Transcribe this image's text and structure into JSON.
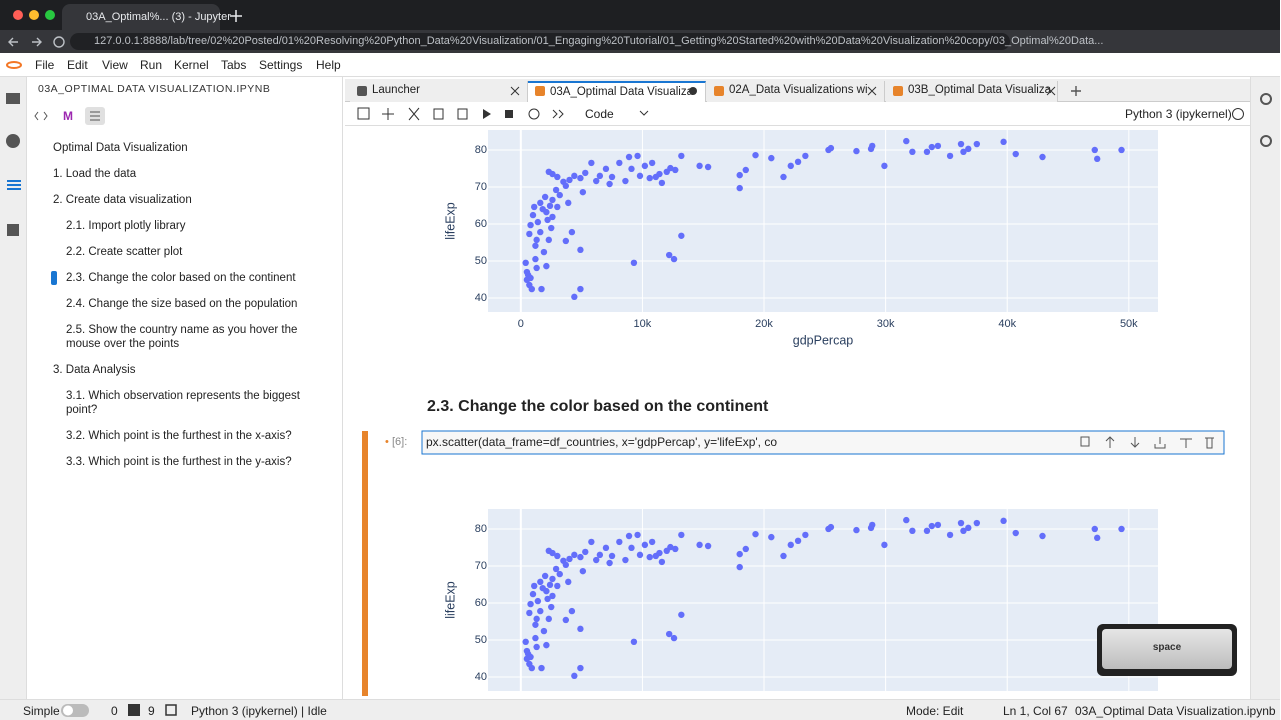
{
  "browser": {
    "tab_title": "03A_Optimal%... (3) - Jupyter",
    "url": "127.0.0.1:8888/lab/tree/02%20Posted/01%20Resolving%20Python_Data%20Visualization/01_Engaging%20Tutorial/01_Getting%20Started%20with%20Data%20Visualization%20copy/03_Optimal%20Data..."
  },
  "menu": [
    "File",
    "Edit",
    "View",
    "Run",
    "Kernel",
    "Tabs",
    "Settings",
    "Help"
  ],
  "sidebar": {
    "title": "03A_OPTIMAL DATA VISUALIZATION.IPYNB",
    "toc": [
      "Optimal Data Visualization",
      "1. Load the data",
      "2. Create data visualization",
      "2.1. Import plotly library",
      "2.2. Create scatter plot",
      "2.3. Change the color based on the continent",
      "2.4. Change the size based on the population",
      "2.5. Show the country name as you hover the mouse over the points",
      "3. Data Analysis",
      "3.1. Which observation represents the biggest point?",
      "3.2. Which point is the furthest in the x-axis?",
      "3.3. Which point is the furthest in the y-axis?"
    ]
  },
  "tabs": [
    "Launcher",
    "03A_Optimal Data Visualiza",
    "02A_Data Visualizations wi",
    "03B_Optimal Data Visualiza"
  ],
  "toolbar": {
    "cell_type": "Code",
    "kernel": "Python 3 (ipykernel)"
  },
  "notebook": {
    "heading": "2.3. Change the color based on the continent",
    "prompt": "[6]:",
    "code": "px.scatter(data_frame=df_countries, x='gdpPercap', y='lifeExp', co"
  },
  "status": {
    "mode": "Simple",
    "terminals": "0",
    "kernels": "9",
    "kernel_status": "Python 3 (ipykernel) | Idle",
    "edit_mode": "Mode: Edit",
    "position": "Ln 1, Col 67",
    "file": "03A_Optimal Data Visualization.ipynb"
  },
  "key_overlay": "space",
  "chart_data": {
    "type": "scatter",
    "x_label": "gdpPercap",
    "y_label": "lifeExp",
    "color": "#636efa",
    "grid": true,
    "xlim": [
      -2700,
      52400
    ],
    "ylim": [
      36.2,
      85.4
    ],
    "xticks": [
      0,
      {
        "value": 10000,
        "label": "10k"
      },
      {
        "value": 20000,
        "label": "20k"
      },
      {
        "value": 30000,
        "label": "30k"
      },
      {
        "value": 40000,
        "label": "40k"
      },
      {
        "value": 50000,
        "label": "50k"
      }
    ],
    "yticks": [
      40,
      50,
      60,
      70,
      80
    ],
    "x": [
      2300,
      2600,
      3000,
      3500,
      3700,
      4000,
      4400,
      4900,
      5300,
      5800,
      6200,
      6500,
      7000,
      7300,
      7500,
      8100,
      8600,
      8900,
      9100,
      9600,
      9800,
      10200,
      10600,
      10800,
      11100,
      11400,
      11600,
      12000,
      12300,
      12700,
      13200,
      14700,
      15400,
      18000,
      18000,
      18500,
      19300,
      20600,
      21600,
      22200,
      22800,
      23400,
      25300,
      25500,
      27600,
      28800,
      28900,
      29900,
      31700,
      32200,
      33400,
      33800,
      34300,
      35300,
      36200,
      36400,
      36800,
      37500,
      39700,
      40700,
      42900,
      47200,
      47400,
      49400,
      400,
      500,
      600,
      500,
      700,
      800,
      900,
      700,
      800,
      1000,
      1100,
      1200,
      1200,
      1300,
      1300,
      1400,
      1600,
      1600,
      1700,
      1800,
      1900,
      2000,
      2100,
      2100,
      2200,
      2300,
      2400,
      2500,
      2600,
      2600,
      2900,
      3000,
      3200,
      3700,
      3900,
      4200,
      4400,
      4900,
      4900,
      5100,
      9300,
      12200,
      12600,
      13200
    ],
    "values": [
      74.1,
      73.5,
      72.7,
      71.4,
      70.3,
      71.9,
      73,
      72.4,
      73.8,
      76.5,
      71.6,
      73,
      74.9,
      70.8,
      72.7,
      76.5,
      71.6,
      78.1,
      74.9,
      78.4,
      73,
      75.7,
      72.4,
      76.5,
      72.7,
      73.5,
      71.1,
      74.1,
      75.1,
      74.6,
      78.4,
      75.7,
      75.4,
      69.7,
      73.2,
      74.6,
      78.6,
      77.8,
      72.7,
      75.7,
      76.8,
      78.4,
      80,
      80.5,
      79.7,
      80.3,
      81.1,
      75.7,
      82.4,
      79.5,
      79.5,
      80.8,
      81.1,
      78.4,
      81.6,
      79.5,
      80.3,
      81.6,
      82.2,
      78.9,
      78.1,
      80,
      77.6,
      80,
      49.5,
      47,
      46.2,
      44.9,
      43.5,
      45.4,
      42.4,
      57.3,
      59.7,
      62.4,
      64.6,
      54.1,
      50.5,
      55.7,
      48.1,
      60.5,
      65.7,
      57.8,
      42.4,
      64,
      52.4,
      67.3,
      48.6,
      63.2,
      61.1,
      55.7,
      64.9,
      58.9,
      66.5,
      61.9,
      69.2,
      64.6,
      67.8,
      55.4,
      65.7,
      57.8,
      40.3,
      42.4,
      53,
      68.6,
      49.5,
      51.6,
      50.5,
      56.8
    ]
  }
}
